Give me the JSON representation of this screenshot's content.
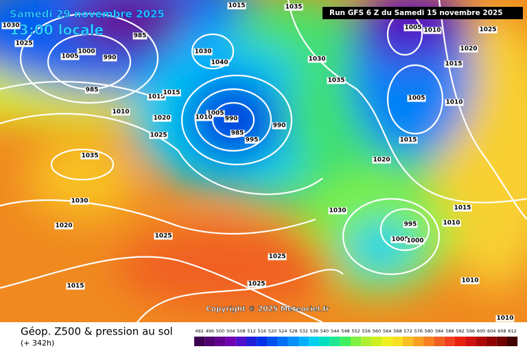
{
  "header": {
    "date": "Samedi 29 novembre 2025",
    "time": "13:00 locale",
    "run": "Run GFS 6 Z du Samedi 15 novembre 2025"
  },
  "copyright": "Copyright © 2025 Meteociel.fr",
  "footer": {
    "title": "Géop. Z500 & pression au sol",
    "lead": "(+ 342h)"
  },
  "scale": {
    "labels": [
      "492",
      "496",
      "500",
      "504",
      "508",
      "512",
      "516",
      "520",
      "524",
      "528",
      "532",
      "536",
      "540",
      "544",
      "548",
      "552",
      "556",
      "560",
      "564",
      "568",
      "572",
      "576",
      "580",
      "584",
      "588",
      "592",
      "596",
      "600",
      "604",
      "608",
      "612"
    ],
    "colors": [
      "#3c0050",
      "#500070",
      "#640090",
      "#7000b0",
      "#5010c8",
      "#2020d8",
      "#0030e8",
      "#0050f0",
      "#0070f8",
      "#0090ff",
      "#00b0ff",
      "#00d0f0",
      "#00e0c0",
      "#20e890",
      "#40f060",
      "#80f040",
      "#b0f030",
      "#d0f020",
      "#f0f020",
      "#f8e020",
      "#f8c020",
      "#f8a020",
      "#f88020",
      "#f06020",
      "#f04020",
      "#e82010",
      "#d01010",
      "#b00808",
      "#900000",
      "#700000",
      "#400000"
    ]
  },
  "isobar_labels": [
    "1015",
    "1035",
    "1030",
    "1025",
    "1005",
    "1000",
    "990",
    "985",
    "985",
    "1010",
    "1015",
    "1015",
    "1020",
    "1025",
    "1035",
    "1030",
    "1020",
    "1025",
    "1015",
    "1025",
    "1025",
    "1040",
    "1030",
    "1005",
    "1010",
    "990",
    "985",
    "995",
    "990",
    "1030",
    "1035",
    "1005",
    "1010",
    "1025",
    "1020",
    "1015",
    "1005",
    "1010",
    "1015",
    "1020",
    "1030",
    "1015",
    "1010",
    "995",
    "1005",
    "1000",
    "1010",
    "1010"
  ]
}
